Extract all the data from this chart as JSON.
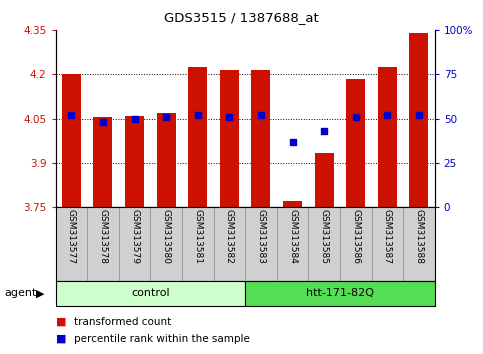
{
  "title": "GDS3515 / 1387688_at",
  "samples": [
    "GSM313577",
    "GSM313578",
    "GSM313579",
    "GSM313580",
    "GSM313581",
    "GSM313582",
    "GSM313583",
    "GSM313584",
    "GSM313585",
    "GSM313586",
    "GSM313587",
    "GSM313588"
  ],
  "bar_values": [
    4.2,
    4.055,
    4.06,
    4.07,
    4.225,
    4.215,
    4.215,
    3.77,
    3.935,
    4.185,
    4.225,
    4.34
  ],
  "percentile_values": [
    52,
    48,
    50,
    51,
    52,
    51,
    52,
    37,
    43,
    51,
    52,
    52
  ],
  "bar_color": "#cc1100",
  "dot_color": "#0000cc",
  "ylim_left": [
    3.75,
    4.35
  ],
  "ylim_right": [
    0,
    100
  ],
  "yticks_left": [
    3.75,
    3.9,
    4.05,
    4.2,
    4.35
  ],
  "yticks_left_labels": [
    "3.75",
    "3.9",
    "4.05",
    "4.2",
    "4.35"
  ],
  "yticks_right": [
    0,
    25,
    50,
    75,
    100
  ],
  "yticks_right_labels": [
    "0",
    "25",
    "50",
    "75",
    "100%"
  ],
  "grid_values": [
    3.9,
    4.05,
    4.2
  ],
  "groups": [
    {
      "label": "control",
      "start": 0,
      "end": 5,
      "color": "#ccffcc"
    },
    {
      "label": "htt-171-82Q",
      "start": 6,
      "end": 11,
      "color": "#55dd55"
    }
  ],
  "agent_label": "agent",
  "legend_items": [
    {
      "color": "#cc1100",
      "label": "transformed count"
    },
    {
      "color": "#0000cc",
      "label": "percentile rank within the sample"
    }
  ],
  "bar_width": 0.6,
  "background_color": "#ffffff",
  "plot_bg_color": "#ffffff",
  "tick_color_left": "#cc1100",
  "tick_color_right": "#0000cc",
  "label_band_color": "#d0d0d0",
  "figsize": [
    4.83,
    3.54
  ],
  "dpi": 100
}
